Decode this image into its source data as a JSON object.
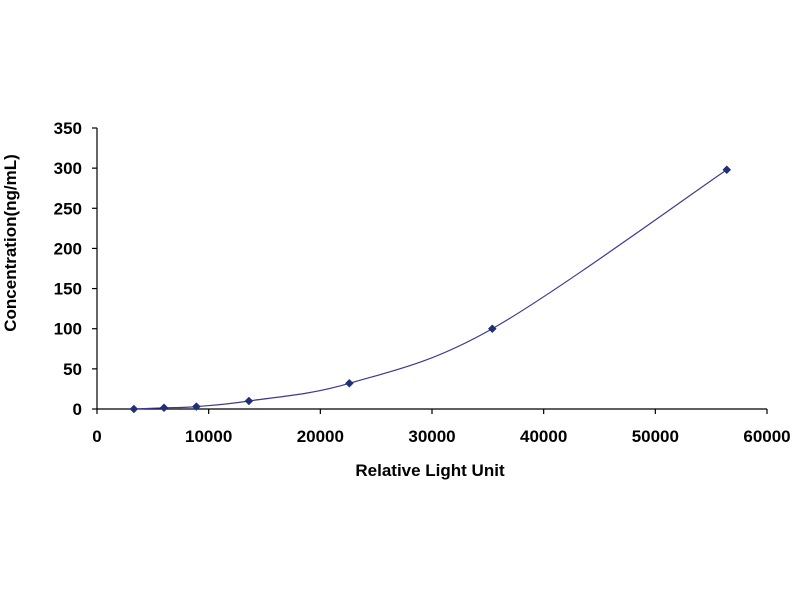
{
  "chart_data": {
    "type": "scatter",
    "xlabel": "Relative Light Unit",
    "ylabel": "Concentration(ng/mL)",
    "xlim": [
      0,
      60000
    ],
    "ylim": [
      0,
      350
    ],
    "x_ticks": [
      0,
      10000,
      20000,
      30000,
      40000,
      50000,
      60000
    ],
    "y_ticks": [
      0,
      50,
      100,
      150,
      200,
      250,
      300,
      350
    ],
    "grid": false,
    "legend": "none",
    "marker_color": "#1f2f7a",
    "line_color": "#3b3b8f",
    "series": [
      {
        "points": [
          {
            "x": 3300,
            "y": 0
          },
          {
            "x": 6000,
            "y": 1.5
          },
          {
            "x": 8900,
            "y": 3
          },
          {
            "x": 13600,
            "y": 10
          },
          {
            "x": 22600,
            "y": 32
          },
          {
            "x": 35400,
            "y": 100
          },
          {
            "x": 56400,
            "y": 298
          }
        ],
        "fit_line": true
      }
    ]
  }
}
